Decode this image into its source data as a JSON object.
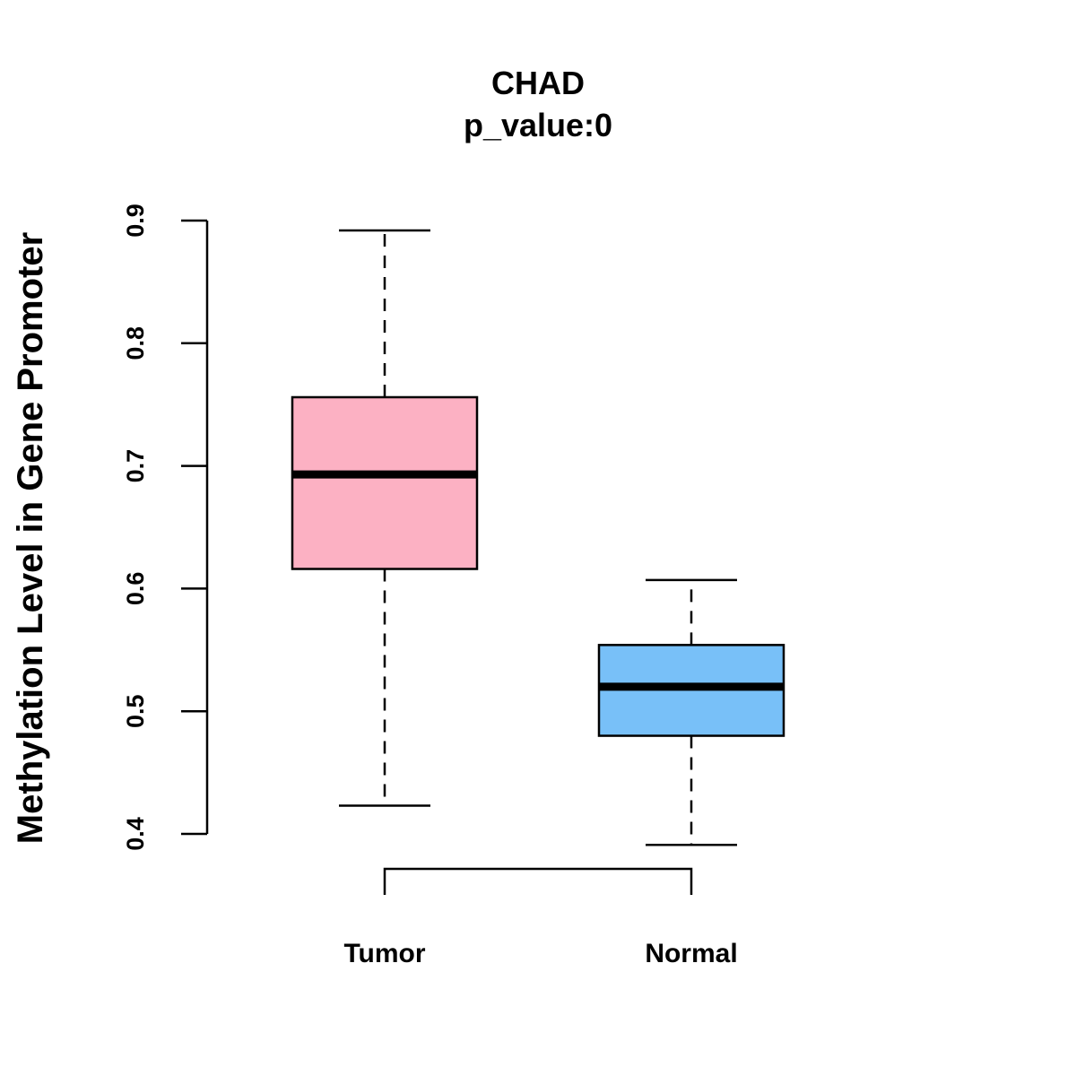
{
  "chart_data": {
    "type": "boxplot",
    "title": "CHAD",
    "subtitle": "p_value:0",
    "xlabel": "",
    "ylabel": "Methylation Level in Gene Promoter",
    "ylim": [
      0.4,
      0.9
    ],
    "yticks": [
      0.4,
      0.5,
      0.6,
      0.7,
      0.8,
      0.9
    ],
    "ytick_labels": [
      "0.4",
      "0.5",
      "0.6",
      "0.7",
      "0.8",
      "0.9"
    ],
    "categories": [
      "Tumor",
      "Normal"
    ],
    "boxes": [
      {
        "name": "Tumor",
        "min": 0.423,
        "q1": 0.616,
        "median": 0.693,
        "q3": 0.756,
        "max": 0.892,
        "color": "#FCB1C3"
      },
      {
        "name": "Normal",
        "min": 0.391,
        "q1": 0.48,
        "median": 0.52,
        "q3": 0.554,
        "max": 0.607,
        "color": "#78C0F8"
      }
    ],
    "comparison": {
      "from": "Tumor",
      "to": "Normal",
      "label": ""
    },
    "grid": false,
    "legend": "none"
  }
}
